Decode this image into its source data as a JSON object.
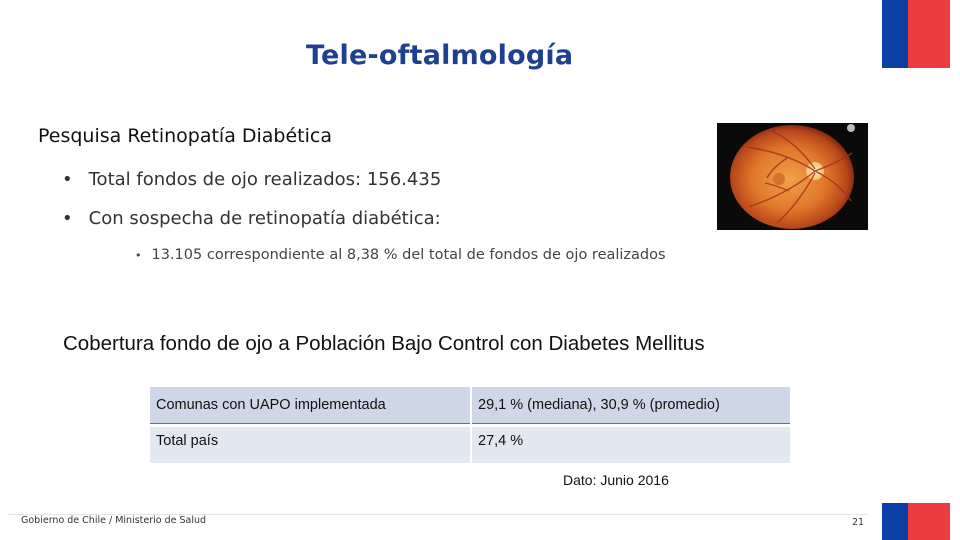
{
  "title": "Tele-oftalmología",
  "subtitle": "Pesquisa Retinopatía Diabética",
  "bullets": [
    "Total fondos de ojo realizados: 156.435",
    "Con sospecha de retinopatía diabética:"
  ],
  "sub_bullets": [
    "13.105 correspondiente al 8,38 % del total de fondos de ojo realizados"
  ],
  "section_title": "Cobertura fondo de ojo a Población Bajo Control con Diabetes Mellitus",
  "table": {
    "rows": [
      [
        "Comunas con UAPO implementada",
        "29,1 % (mediana), 30,9 % (promedio)"
      ],
      [
        "Total país",
        "27,4 %"
      ]
    ]
  },
  "note": "Dato: Junio 2016",
  "footer": "Gobierno de Chile / Ministerio de Salud",
  "page_number": "21",
  "colors": {
    "title": "#1f3f8f",
    "flag_blue": "#0b3fa6",
    "flag_red": "#ec3c3f",
    "table_row_1": "#cfd6e7",
    "table_row_2": "#e3e7f0"
  },
  "icons": {
    "bullet": "•"
  }
}
